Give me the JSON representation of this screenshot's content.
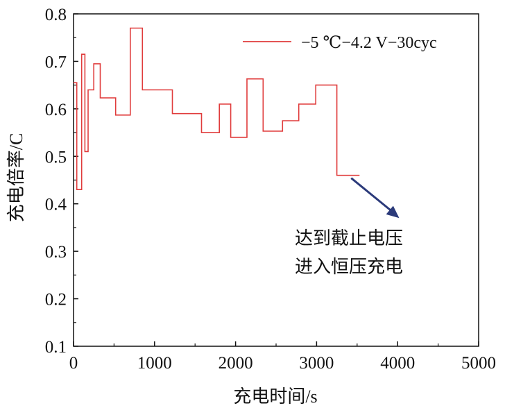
{
  "chart_data": {
    "type": "line",
    "xlabel": "充电时间/s",
    "ylabel": "充电倍率/C",
    "xlim": [
      0,
      5000
    ],
    "ylim": [
      0.1,
      0.8
    ],
    "xticks": [
      "0",
      "1000",
      "2000",
      "3000",
      "4000",
      "5000"
    ],
    "yticks": [
      "0.1",
      "0.2",
      "0.3",
      "0.4",
      "0.5",
      "0.6",
      "0.7",
      "0.8"
    ],
    "grid": false,
    "legend_position": "top-right",
    "series": [
      {
        "name": "−5 ℃−4.2 V−30cyc",
        "color": "#e03c3c",
        "step": true,
        "points": [
          [
            0,
            0.655
          ],
          [
            40,
            0.655
          ],
          [
            40,
            0.43
          ],
          [
            100,
            0.43
          ],
          [
            100,
            0.715
          ],
          [
            140,
            0.715
          ],
          [
            140,
            0.51
          ],
          [
            180,
            0.51
          ],
          [
            180,
            0.64
          ],
          [
            250,
            0.64
          ],
          [
            250,
            0.695
          ],
          [
            330,
            0.695
          ],
          [
            330,
            0.623
          ],
          [
            520,
            0.623
          ],
          [
            520,
            0.587
          ],
          [
            700,
            0.587
          ],
          [
            700,
            0.77
          ],
          [
            850,
            0.77
          ],
          [
            850,
            0.64
          ],
          [
            1220,
            0.64
          ],
          [
            1220,
            0.59
          ],
          [
            1580,
            0.59
          ],
          [
            1580,
            0.55
          ],
          [
            1800,
            0.55
          ],
          [
            1800,
            0.61
          ],
          [
            1940,
            0.61
          ],
          [
            1940,
            0.54
          ],
          [
            2140,
            0.54
          ],
          [
            2140,
            0.663
          ],
          [
            2340,
            0.663
          ],
          [
            2340,
            0.553
          ],
          [
            2580,
            0.553
          ],
          [
            2580,
            0.575
          ],
          [
            2780,
            0.575
          ],
          [
            2780,
            0.61
          ],
          [
            2990,
            0.61
          ],
          [
            2990,
            0.65
          ],
          [
            3250,
            0.65
          ],
          [
            3250,
            0.46
          ],
          [
            3530,
            0.46
          ]
        ]
      }
    ],
    "annotation": {
      "lines": [
        "达到截止电压",
        "进入恒压充电"
      ],
      "arrow_from": [
        3530,
        0.46
      ],
      "arrow_to": [
        4020,
        0.37
      ],
      "arrow_color": "#2b3a7a"
    }
  }
}
